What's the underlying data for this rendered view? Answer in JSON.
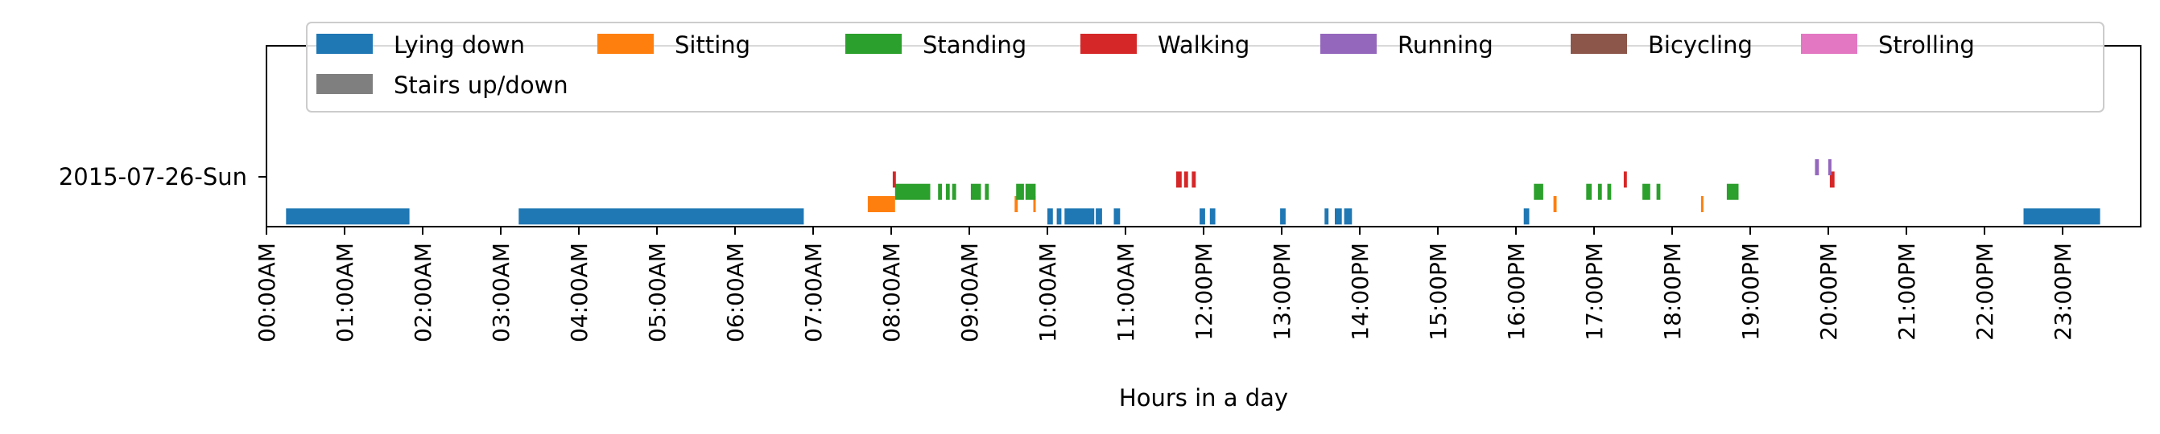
{
  "chart_data": {
    "type": "timeline",
    "xlabel": "Hours in a day",
    "xlim": [
      0,
      24
    ],
    "x_ticks": [
      {
        "hour": 0,
        "label": "00:00AM"
      },
      {
        "hour": 1,
        "label": "01:00AM"
      },
      {
        "hour": 2,
        "label": "02:00AM"
      },
      {
        "hour": 3,
        "label": "03:00AM"
      },
      {
        "hour": 4,
        "label": "04:00AM"
      },
      {
        "hour": 5,
        "label": "05:00AM"
      },
      {
        "hour": 6,
        "label": "06:00AM"
      },
      {
        "hour": 7,
        "label": "07:00AM"
      },
      {
        "hour": 8,
        "label": "08:00AM"
      },
      {
        "hour": 9,
        "label": "09:00AM"
      },
      {
        "hour": 10,
        "label": "10:00AM"
      },
      {
        "hour": 11,
        "label": "11:00AM"
      },
      {
        "hour": 12,
        "label": "12:00PM"
      },
      {
        "hour": 13,
        "label": "13:00PM"
      },
      {
        "hour": 14,
        "label": "14:00PM"
      },
      {
        "hour": 15,
        "label": "15:00PM"
      },
      {
        "hour": 16,
        "label": "16:00PM"
      },
      {
        "hour": 17,
        "label": "17:00PM"
      },
      {
        "hour": 18,
        "label": "18:00PM"
      },
      {
        "hour": 19,
        "label": "19:00PM"
      },
      {
        "hour": 20,
        "label": "20:00PM"
      },
      {
        "hour": 21,
        "label": "21:00PM"
      },
      {
        "hour": 22,
        "label": "22:00PM"
      },
      {
        "hour": 23,
        "label": "23:00PM"
      }
    ],
    "y_ticks": [
      "2015-07-26-Sun"
    ],
    "legend_placement": "top, 7 columns",
    "grid": false,
    "series": [
      {
        "name": "Lying down",
        "color": "#1f77b4",
        "level": -1.45,
        "intervals": [
          [
            0.25,
            1.83
          ],
          [
            3.23,
            6.88
          ],
          [
            10.0,
            10.07
          ],
          [
            10.12,
            10.18
          ],
          [
            10.22,
            10.6
          ],
          [
            10.62,
            10.7
          ],
          [
            10.85,
            10.93
          ],
          [
            11.95,
            12.02
          ],
          [
            12.08,
            12.15
          ],
          [
            12.98,
            13.05
          ],
          [
            13.55,
            13.6
          ],
          [
            13.68,
            13.77
          ],
          [
            13.8,
            13.9
          ],
          [
            16.1,
            16.17
          ],
          [
            22.5,
            23.48
          ]
        ]
      },
      {
        "name": "Sitting",
        "color": "#ff7f0e",
        "level": -1.0,
        "intervals": [
          [
            7.7,
            8.05
          ],
          [
            9.58,
            9.62
          ],
          [
            9.82,
            9.85
          ],
          [
            16.48,
            16.52
          ],
          [
            18.37,
            18.4
          ]
        ]
      },
      {
        "name": "Standing",
        "color": "#2ca02c",
        "level": -0.55,
        "intervals": [
          [
            8.05,
            8.5
          ],
          [
            8.6,
            8.65
          ],
          [
            8.7,
            8.75
          ],
          [
            8.78,
            8.83
          ],
          [
            9.02,
            9.15
          ],
          [
            9.2,
            9.25
          ],
          [
            9.6,
            9.7
          ],
          [
            9.72,
            9.85
          ],
          [
            16.23,
            16.35
          ],
          [
            16.9,
            16.97
          ],
          [
            17.05,
            17.1
          ],
          [
            17.17,
            17.22
          ],
          [
            17.62,
            17.72
          ],
          [
            17.8,
            17.85
          ],
          [
            18.7,
            18.85
          ]
        ]
      },
      {
        "name": "Walking",
        "color": "#d62728",
        "level": -0.1,
        "intervals": [
          [
            8.02,
            8.06
          ],
          [
            11.65,
            11.72
          ],
          [
            11.75,
            11.8
          ],
          [
            11.85,
            11.9
          ],
          [
            17.38,
            17.42
          ],
          [
            20.02,
            20.08
          ]
        ]
      },
      {
        "name": "Running",
        "color": "#9467bd",
        "level": 0.35,
        "intervals": [
          [
            19.83,
            19.88
          ],
          [
            20.0,
            20.04
          ]
        ]
      },
      {
        "name": "Bicycling",
        "color": "#8c564b",
        "level": 0.8,
        "intervals": []
      },
      {
        "name": "Strolling",
        "color": "#e377c2",
        "level": 1.25,
        "intervals": []
      },
      {
        "name": "Stairs up/down",
        "color": "#7f7f7f",
        "level": 1.7,
        "intervals": []
      }
    ]
  }
}
